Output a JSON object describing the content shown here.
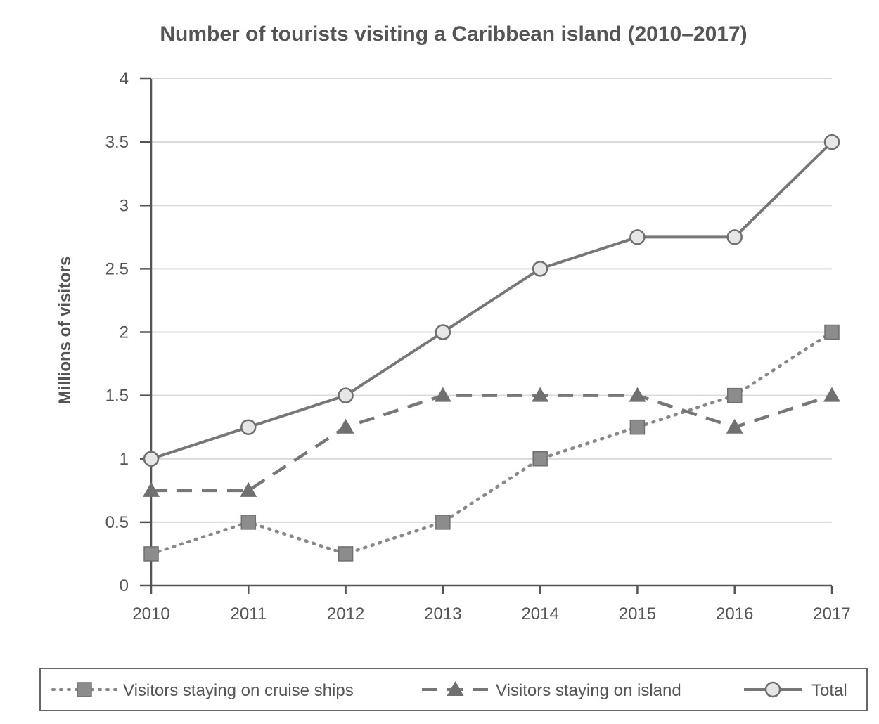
{
  "chart_data": {
    "type": "line",
    "title": "Number of tourists visiting a Caribbean island (2010–2017)",
    "xlabel": "",
    "ylabel": "Millions of visitors",
    "x": [
      "2010",
      "2011",
      "2012",
      "2013",
      "2014",
      "2015",
      "2016",
      "2017"
    ],
    "ylim": [
      0,
      4
    ],
    "yticks": [
      "0",
      "0.5",
      "1",
      "1.5",
      "2",
      "2.5",
      "3",
      "3.5",
      "4"
    ],
    "grid": true,
    "legend_position": "bottom",
    "series": [
      {
        "name": "Visitors staying on cruise ships",
        "values": [
          0.25,
          0.5,
          0.25,
          0.5,
          1,
          1.25,
          1.5,
          2
        ],
        "marker": "square",
        "line_style": "dotted",
        "color": "#888888"
      },
      {
        "name": "Visitors staying on island",
        "values": [
          0.75,
          0.75,
          1.25,
          1.5,
          1.5,
          1.5,
          1.25,
          1.5
        ],
        "marker": "triangle",
        "line_style": "dashed",
        "color": "#777777"
      },
      {
        "name": "Total",
        "values": [
          1,
          1.25,
          1.5,
          2,
          2.5,
          2.75,
          2.75,
          3.5
        ],
        "marker": "circle",
        "line_style": "solid",
        "color": "#777777"
      }
    ]
  }
}
